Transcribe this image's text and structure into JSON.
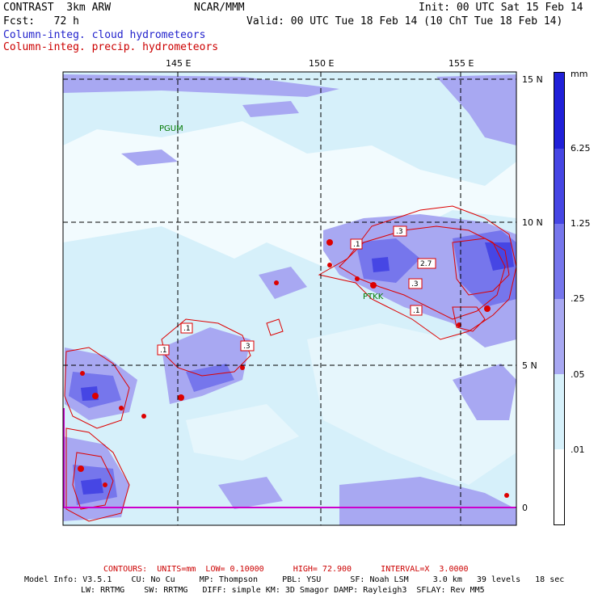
{
  "header": {
    "model": "CONTRAST  3km ARW",
    "org": "NCAR/MMM",
    "init": "Init: 00 UTC Sat 15 Feb 14",
    "fcst": "Fcst:   72 h",
    "valid": "Valid: 00 UTC Tue 18 Feb 14 (10 ChT Tue 18 Feb 14)",
    "field1": "Column-integ. cloud hydrometeors",
    "field2": "Column-integ. precip. hydrometeors"
  },
  "map": {
    "lon_labels": [
      "145 E",
      "150 E",
      "155 E"
    ],
    "lat_labels": [
      "15 N",
      "10 N",
      "5 N",
      "0"
    ],
    "stations": [
      "PGUM",
      "PTKK"
    ],
    "contour_labels": [
      ".1",
      ".3",
      "2.7",
      ".3",
      ".1",
      ".1",
      ".1",
      ".1",
      ".3",
      "1"
    ]
  },
  "colorbar": {
    "unit": "mm",
    "levels": [
      "6.25",
      "1.25",
      ".25",
      ".05",
      ".01"
    ],
    "colors": [
      "#2020d8",
      "#4646e4",
      "#7676ec",
      "#a8a8f2",
      "#d6f0fa",
      "#ffffff"
    ]
  },
  "footer": {
    "contours": "CONTOURS:  UNITS=mm  LOW= 0.10000      HIGH= 72.900      INTERVAL=X  3.0000",
    "info1": "Model Info: V3.5.1    CU: No Cu     MP: Thompson     PBL: YSU      SF: Noah LSM     3.0 km   39 levels   18 sec",
    "info2": "LW: RRTMG    SW: RRTMG   DIFF: simple KM: 3D Smagor DAMP: Rayleigh3  SFLAY: Rev MM5"
  }
}
